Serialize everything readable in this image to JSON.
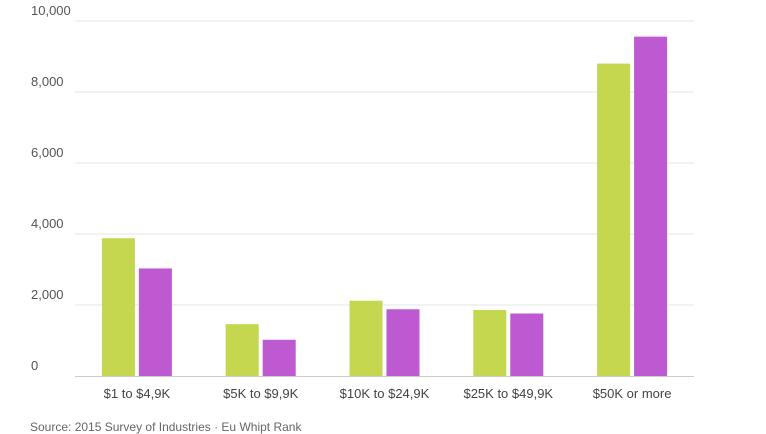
{
  "chart_data": {
    "type": "bar",
    "categories": [
      "$1 to $4,9K",
      "$5K to $9,9K",
      "$10K to $24,9K",
      "$25K to $49,9K",
      "$50K or more"
    ],
    "series": [
      {
        "values": [
          3880,
          1460,
          2120,
          1860,
          8800
        ],
        "color": "#c5d64f"
      },
      {
        "values": [
          3030,
          1020,
          1880,
          1760,
          9560
        ],
        "color": "#bd59d1"
      }
    ],
    "y_ticks": [
      {
        "value": 0,
        "label": "0"
      },
      {
        "value": 2000,
        "label": "2,000"
      },
      {
        "value": 4000,
        "label": "4,000"
      },
      {
        "value": 6000,
        "label": "6,000"
      },
      {
        "value": 8000,
        "label": "8,000"
      },
      {
        "value": 10000,
        "label": "10,000"
      }
    ],
    "ylim": [
      0,
      10000
    ],
    "grid": true,
    "title": "",
    "xlabel": "",
    "ylabel": ""
  },
  "source_note": "Source: 2015 Survey of Industries · Eu Whipt Rank"
}
